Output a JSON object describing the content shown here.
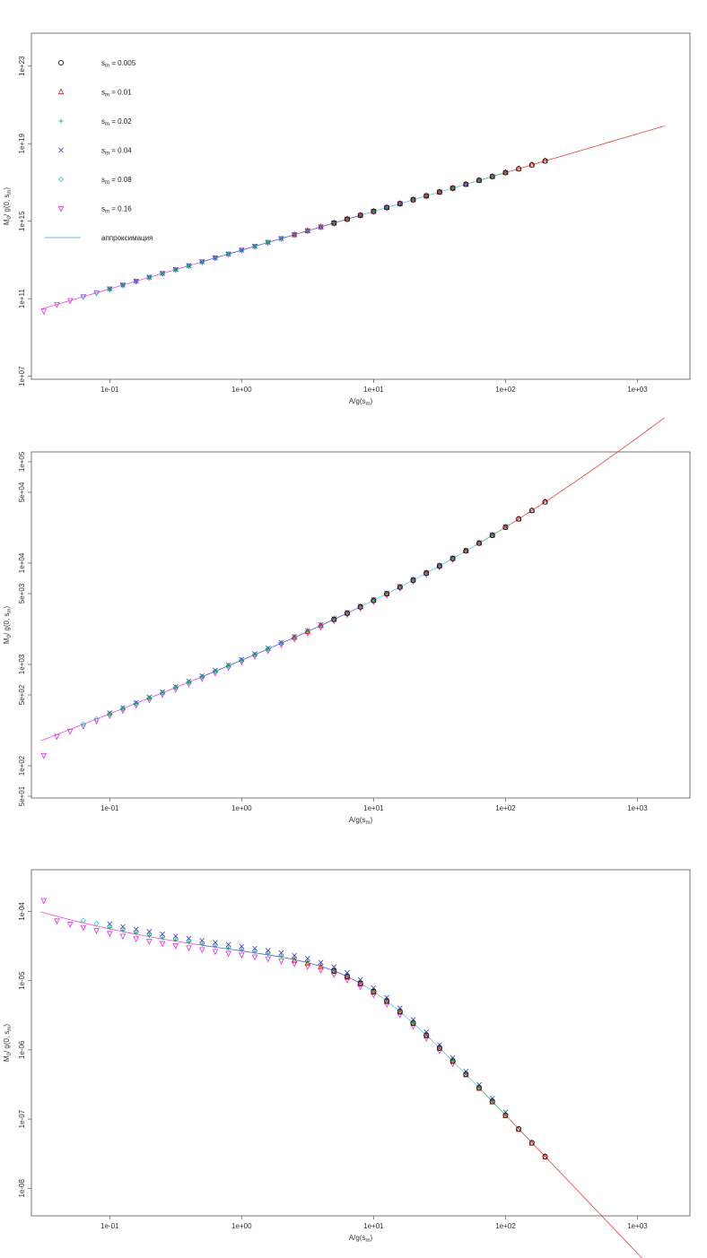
{
  "colors": {
    "s0005": "#000000",
    "s001": "#e0201a",
    "s002": "#1fa84a",
    "s004": "#3a3ad6",
    "s008": "#38c6d8",
    "s016": "#e42adc",
    "approx": "#7ab8d8"
  },
  "legend": {
    "items": [
      {
        "key": "s0005",
        "label": "0.005",
        "shape": "circle"
      },
      {
        "key": "s001",
        "label": "0.01",
        "shape": "triangle"
      },
      {
        "key": "s002",
        "label": "0.02",
        "shape": "plus"
      },
      {
        "key": "s004",
        "label": "0.04",
        "shape": "cross"
      },
      {
        "key": "s008",
        "label": "0.08",
        "shape": "diamond"
      },
      {
        "key": "s016",
        "label": "0.16",
        "shape": "itriangle"
      }
    ],
    "s_main": "s",
    "s_sub": "m",
    "eq": " = ",
    "approx_label": "аппроксимация"
  },
  "chart_data": [
    {
      "type": "scatter",
      "log_x": true,
      "log_y": true,
      "xlim": [
        0.0255,
        2500
      ],
      "ylim": [
        7000000.0,
        5e+24
      ],
      "x_ticks": [
        {
          "value": 0.1,
          "label": "1e-01"
        },
        {
          "value": 1,
          "label": "1e+00"
        },
        {
          "value": 10,
          "label": "1e+01"
        },
        {
          "value": 100,
          "label": "1e+02"
        },
        {
          "value": 1000,
          "label": "1e+03"
        }
      ],
      "y_ticks": [
        {
          "value": 10000000.0,
          "label": "1e+07"
        },
        {
          "value": 100000000000.0,
          "label": "1e+11"
        },
        {
          "value": 1000000000000000.0,
          "label": "1e+15"
        },
        {
          "value": 1e+19,
          "label": "1e+19"
        },
        {
          "value": 1e+23,
          "label": "1e+23"
        }
      ],
      "xlabel": {
        "main": "A",
        "mid": "/g(s",
        "sub": "m",
        "end": ")"
      },
      "ylabel": {
        "main": "M",
        "sub": "0",
        "mid": "/ g(0, s",
        "sub2": "m",
        "end": ")"
      },
      "legend": "top-left",
      "curve": {
        "type": "power",
        "x_min": 0.03,
        "x_max": 1600,
        "y_at_x1": 32000000000000.0,
        "slope": 2.0
      },
      "series": [
        {
          "key": "s016",
          "shape": "itriangle",
          "x_min": 0.03,
          "x_max": 50,
          "offset": 1.0,
          "first_offset": 0.72
        },
        {
          "key": "s008",
          "shape": "diamond",
          "x_min": 0.06,
          "x_max": 80,
          "offset": 1.0
        },
        {
          "key": "s004",
          "shape": "cross",
          "x_min": 0.1,
          "x_max": 100,
          "offset": 1.0
        },
        {
          "key": "s002",
          "shape": "plus",
          "x_min": 0.1,
          "x_max": 100,
          "offset": 1.0
        },
        {
          "key": "s001",
          "shape": "triangle",
          "x_min": 2.0,
          "x_max": 800,
          "offset": 1.0
        },
        {
          "key": "s0005",
          "shape": "circle",
          "x_min": 5.0,
          "x_max": 1600,
          "offset": 1.0
        }
      ]
    },
    {
      "type": "scatter",
      "log_x": true,
      "log_y": true,
      "xlim": [
        0.0255,
        2500
      ],
      "ylim": [
        48,
        125000
      ],
      "x_ticks": [
        {
          "value": 0.1,
          "label": "1e-01"
        },
        {
          "value": 1,
          "label": "1e+00"
        },
        {
          "value": 10,
          "label": "1e+01"
        },
        {
          "value": 100,
          "label": "1e+02"
        },
        {
          "value": 1000,
          "label": "1e+03"
        }
      ],
      "y_ticks": [
        {
          "value": 50,
          "label": "5e+01"
        },
        {
          "value": 100,
          "label": "1e+02"
        },
        {
          "value": 500,
          "label": "5e+02"
        },
        {
          "value": 1000,
          "label": "1e+03"
        },
        {
          "value": 5000,
          "label": "5e+03"
        },
        {
          "value": 10000,
          "label": "1e+04"
        },
        {
          "value": 50000,
          "label": "5e+04"
        },
        {
          "value": 100000,
          "label": "1e+05"
        }
      ],
      "xlabel": {
        "main": "A",
        "mid": "/g(s",
        "sub": "m",
        "end": ")"
      },
      "ylabel": {
        "main": "M",
        "sub": "0",
        "mid": "/ g(0, s",
        "sub2": "m",
        "end": ")"
      },
      "curve": {
        "type": "sum",
        "x_min": 0.03,
        "x_max": 1600,
        "a": 1000,
        "p": 0.5,
        "b": 0.0,
        "c": 100,
        "q": 1.05
      },
      "series": [
        {
          "key": "s016",
          "shape": "itriangle",
          "x_min": 0.03,
          "x_max": 50,
          "offset": 0.96,
          "first_offset": 0.7
        },
        {
          "key": "s008",
          "shape": "diamond",
          "x_min": 0.06,
          "x_max": 80,
          "offset": 1.0
        },
        {
          "key": "s004",
          "shape": "cross",
          "x_min": 0.1,
          "x_max": 100,
          "offset": 1.02
        },
        {
          "key": "s002",
          "shape": "plus",
          "x_min": 0.1,
          "x_max": 100,
          "offset": 1.0
        },
        {
          "key": "s001",
          "shape": "triangle",
          "x_min": 2.0,
          "x_max": 800,
          "offset": 1.0
        },
        {
          "key": "s0005",
          "shape": "circle",
          "x_min": 5.0,
          "x_max": 1600,
          "offset": 1.0
        }
      ]
    },
    {
      "type": "scatter",
      "log_x": true,
      "log_y": true,
      "xlim": [
        0.0255,
        2500
      ],
      "ylim": [
        4e-09,
        0.0004
      ],
      "x_ticks": [
        {
          "value": 0.1,
          "label": "1e-01"
        },
        {
          "value": 1,
          "label": "1e+00"
        },
        {
          "value": 10,
          "label": "1e+01"
        },
        {
          "value": 100,
          "label": "1e+02"
        },
        {
          "value": 1000,
          "label": "1e+03"
        }
      ],
      "y_ticks": [
        {
          "value": 1e-08,
          "label": "1e-08"
        },
        {
          "value": 1e-07,
          "label": "1e-07"
        },
        {
          "value": 1e-06,
          "label": "1e-06"
        },
        {
          "value": 1e-05,
          "label": "1e-05"
        },
        {
          "value": 0.0001,
          "label": "1e-04"
        }
      ],
      "xlabel": {
        "main": "A",
        "mid": "/g(s",
        "sub": "m",
        "end": ")"
      },
      "ylabel": {
        "main": "M",
        "sub": "0",
        "mid": "/ g(0, s",
        "sub2": "m",
        "end": ")"
      },
      "curve": {
        "type": "pow3",
        "x_min": 0.03,
        "x_max": 1600,
        "a": 3.5e-06,
        "p": 0.8,
        "b": 2.4e-05,
        "q": 0.15,
        "c": 0.00115,
        "r": 2.0
      },
      "series": [
        {
          "key": "s016",
          "shape": "itriangle",
          "x_min": 0.03,
          "x_max": 50,
          "offset": 0.86,
          "first_offset": 1.5
        },
        {
          "key": "s008",
          "shape": "diamond",
          "x_min": 0.06,
          "x_max": 80,
          "offset": 1.08
        },
        {
          "key": "s004",
          "shape": "cross",
          "x_min": 0.1,
          "x_max": 100,
          "offset": 1.18
        },
        {
          "key": "s002",
          "shape": "plus",
          "x_min": 0.1,
          "x_max": 100,
          "offset": 1.04
        },
        {
          "key": "s001",
          "shape": "triangle",
          "x_min": 2.0,
          "x_max": 800,
          "offset": 0.97
        },
        {
          "key": "s0005",
          "shape": "circle",
          "x_min": 5.0,
          "x_max": 1600,
          "offset": 1.0
        }
      ]
    }
  ]
}
